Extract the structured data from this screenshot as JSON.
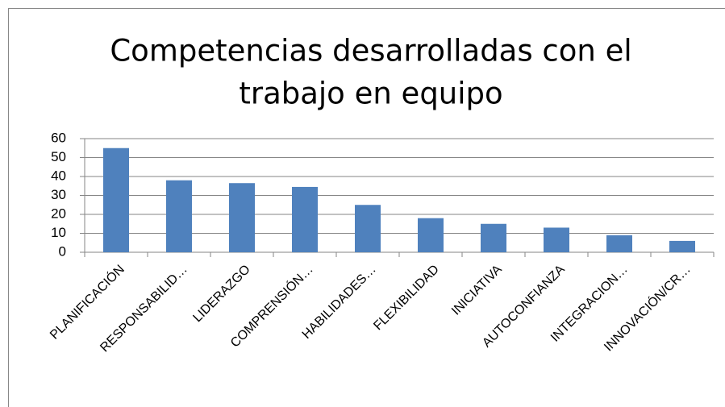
{
  "chart_data": {
    "type": "bar",
    "title": [
      "Competencias desarrolladas con el",
      "trabajo en equipo"
    ],
    "categories": [
      "PLANIFICACIÓN",
      "RESPONSABILID…",
      "LIDERAZGO",
      "COMPRENSIÓN…",
      "HABILIDADES…",
      "FLEXIBILIDAD",
      "INICIATIVA",
      "AUTOCONFIANZA",
      "INTEGRACION…",
      "INNOVACIÓN/CR…"
    ],
    "values": [
      55,
      38,
      36.5,
      34.5,
      25,
      18,
      15,
      13,
      9,
      6
    ],
    "color": "#4f81bd",
    "ylim": [
      0,
      60
    ],
    "yticks": [
      0,
      10,
      20,
      30,
      40,
      50,
      60
    ],
    "grid": true
  }
}
